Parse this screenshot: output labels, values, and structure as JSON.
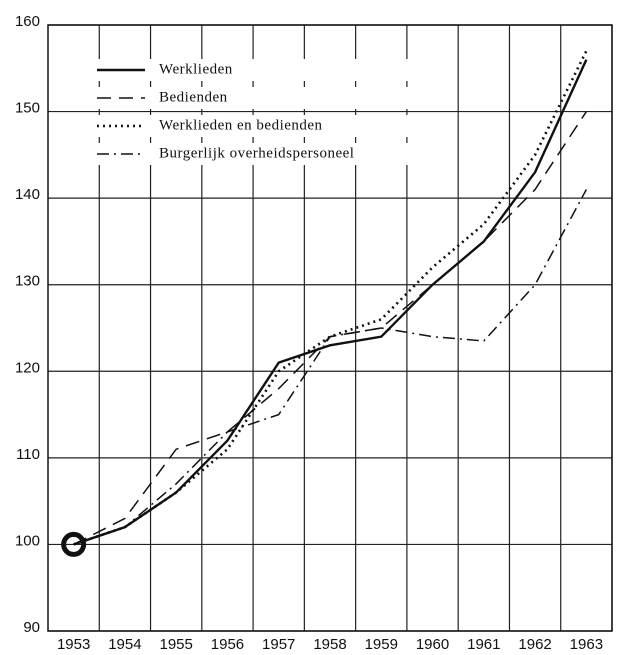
{
  "chart_data": {
    "type": "line",
    "categories": [
      "1953",
      "1954",
      "1955",
      "1956",
      "1957",
      "1958",
      "1959",
      "1960",
      "1961",
      "1962",
      "1963"
    ],
    "series": [
      {
        "name": "Werklieden",
        "color": "#111111",
        "linestyle": "solid",
        "values": [
          100,
          102,
          106,
          112,
          121,
          123,
          124,
          130,
          135,
          143,
          156
        ]
      },
      {
        "name": "Bedienden",
        "color": "#111111",
        "linestyle": "dashed",
        "values": [
          100,
          103,
          111,
          113,
          118,
          124,
          125,
          130,
          135,
          141,
          150
        ]
      },
      {
        "name": "Werklieden en bedienden",
        "color": "#111111",
        "linestyle": "dotted",
        "values": [
          100,
          102,
          106,
          111,
          120,
          124,
          126,
          132,
          137,
          145,
          157
        ]
      },
      {
        "name": "Burgerlijk overheidspersoneel",
        "color": "#111111",
        "linestyle": "dashdot",
        "values": [
          100,
          102,
          107,
          113,
          115,
          124,
          125,
          124,
          123.5,
          130,
          141
        ]
      }
    ],
    "ylim": [
      90,
      160
    ],
    "yticks": [
      90,
      100,
      110,
      120,
      130,
      140,
      150,
      160
    ],
    "grid": true,
    "legend": "upper left"
  }
}
